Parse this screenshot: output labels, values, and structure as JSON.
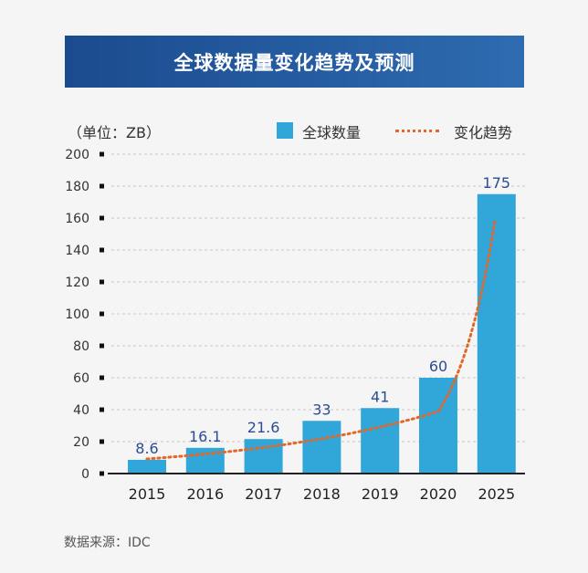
{
  "title": "全球数据量变化趋势及预测",
  "source": "数据来源：IDC",
  "chart_data": {
    "type": "bar",
    "title": "全球数据量变化趋势及预测",
    "ylabel": "（单位：ZB）",
    "categories": [
      "2015",
      "2016",
      "2017",
      "2018",
      "2019",
      "2020",
      "2025"
    ],
    "series": [
      {
        "name": "全球数量",
        "values": [
          8.6,
          16.1,
          21.6,
          33,
          41,
          60,
          175
        ],
        "data_labels": [
          "8.6",
          "16.1",
          "21.6",
          "33",
          "41",
          "60",
          "175"
        ]
      }
    ],
    "trend": {
      "name": "变化趋势",
      "type": "exponential"
    },
    "ylim": [
      0,
      200
    ],
    "yticks": [
      0,
      20,
      40,
      60,
      80,
      100,
      120,
      140,
      160,
      180,
      200
    ],
    "grid": true,
    "legend": "top-right",
    "colors": {
      "bar": "#31a6d9",
      "trend": "#e2682a",
      "label": "#2a4e93"
    }
  }
}
